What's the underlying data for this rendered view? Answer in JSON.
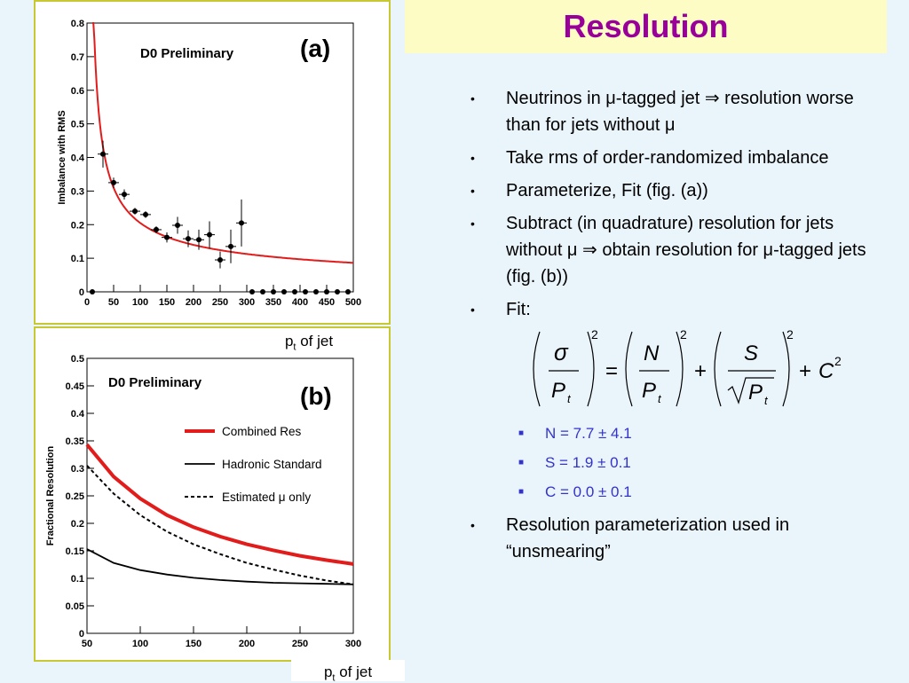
{
  "slide": {
    "title": "Resolution",
    "caption_a_base": "p",
    "caption_a_sub": "t",
    "caption_a_rest": " of jet",
    "caption_b_base": "p",
    "caption_b_sub": "t",
    "caption_b_rest": " of jet"
  },
  "bullets": {
    "b1": "Neutrinos in μ-tagged jet ⇒ resolution worse than for jets without μ",
    "b2": "Take rms of order-randomized imbalance",
    "b3": "Parameterize, Fit  (fig. (a))",
    "b4": "Subtract  (in quadrature) resolution for jets without μ  ⇒ obtain resolution for μ-tagged jets (fig. (b))",
    "b5": "Fit:",
    "fit_params": [
      "N = 7.7 ± 4.1",
      "S = 1.9 ± 0.1",
      "C = 0.0 ± 0.1"
    ],
    "b6": "Resolution parameterization used in “unsmearing”",
    "bullet_glyph": "•",
    "sub_glyph": "■"
  },
  "formula": {
    "sigma": "σ",
    "P": "P",
    "t": "t",
    "N": "N",
    "S": "S",
    "C": "C",
    "eq": "=",
    "plus": "+",
    "sq": "2"
  },
  "chart_data": [
    {
      "type": "scatter",
      "panel": "(a)",
      "title": "D0 Preliminary",
      "xlabel": "",
      "ylabel": "Imbalance with RMS",
      "xlim": [
        0,
        500
      ],
      "ylim": [
        0,
        0.8
      ],
      "x_ticks": [
        0,
        50,
        100,
        150,
        200,
        250,
        300,
        350,
        400,
        450,
        500
      ],
      "y_ticks": [
        0,
        0.1,
        0.2,
        0.3,
        0.4,
        0.5,
        0.6,
        0.7,
        0.8
      ],
      "y_tick_labels": [
        "0",
        "0.1",
        "0.2",
        "0.3",
        "0.4",
        "0.5",
        "0.6",
        "0.7",
        "0.8"
      ],
      "points": [
        {
          "x": 10,
          "y": 0,
          "err": 0
        },
        {
          "x": 30,
          "y": 0.41,
          "err": 0.04
        },
        {
          "x": 50,
          "y": 0.325,
          "err": 0.015
        },
        {
          "x": 70,
          "y": 0.29,
          "err": 0.015
        },
        {
          "x": 90,
          "y": 0.24,
          "err": 0.01
        },
        {
          "x": 110,
          "y": 0.23,
          "err": 0.01
        },
        {
          "x": 130,
          "y": 0.185,
          "err": 0.01
        },
        {
          "x": 150,
          "y": 0.162,
          "err": 0.015
        },
        {
          "x": 170,
          "y": 0.198,
          "err": 0.025
        },
        {
          "x": 190,
          "y": 0.158,
          "err": 0.025
        },
        {
          "x": 210,
          "y": 0.155,
          "err": 0.03
        },
        {
          "x": 230,
          "y": 0.17,
          "err": 0.04
        },
        {
          "x": 250,
          "y": 0.095,
          "err": 0.025
        },
        {
          "x": 270,
          "y": 0.135,
          "err": 0.05
        },
        {
          "x": 290,
          "y": 0.205,
          "err": 0.07
        },
        {
          "x": 310,
          "y": 0,
          "err": 0
        },
        {
          "x": 330,
          "y": 0,
          "err": 0
        },
        {
          "x": 350,
          "y": 0,
          "err": 0
        },
        {
          "x": 370,
          "y": 0,
          "err": 0
        },
        {
          "x": 390,
          "y": 0,
          "err": 0
        },
        {
          "x": 410,
          "y": 0,
          "err": 0
        },
        {
          "x": 430,
          "y": 0,
          "err": 0
        },
        {
          "x": 450,
          "y": 0,
          "err": 0
        },
        {
          "x": 470,
          "y": 0,
          "err": 0
        },
        {
          "x": 490,
          "y": 0,
          "err": 0
        }
      ],
      "fit": {
        "color": "#e21b1b",
        "N": 7.7,
        "S": 1.9,
        "C": 0.0,
        "x_from": 10,
        "x_to": 500
      }
    },
    {
      "type": "line",
      "panel": "(b)",
      "title": "D0 Preliminary",
      "xlabel": "",
      "ylabel": "Fractional Resolution",
      "xlim": [
        50,
        300
      ],
      "ylim": [
        0,
        0.5
      ],
      "x_ticks": [
        50,
        100,
        150,
        200,
        250,
        300
      ],
      "y_ticks": [
        0,
        0.05,
        0.1,
        0.15,
        0.2,
        0.25,
        0.3,
        0.35,
        0.4,
        0.45,
        0.5
      ],
      "y_tick_labels": [
        "0",
        "0.05",
        "0.1",
        "0.15",
        "0.2",
        "0.25",
        "0.3",
        "0.35",
        "0.4",
        "0.45",
        "0.5"
      ],
      "series": [
        {
          "name": "Combined Res",
          "color": "#e21b1b",
          "style": "thick",
          "x": [
            50,
            75,
            100,
            125,
            150,
            175,
            200,
            225,
            250,
            275,
            300
          ],
          "values": [
            0.343,
            0.285,
            0.245,
            0.215,
            0.193,
            0.176,
            0.162,
            0.151,
            0.141,
            0.133,
            0.126
          ]
        },
        {
          "name": "Hadronic Standard",
          "color": "#000000",
          "style": "solid",
          "x": [
            50,
            75,
            100,
            125,
            150,
            175,
            200,
            225,
            250,
            275,
            300
          ],
          "values": [
            0.153,
            0.128,
            0.115,
            0.107,
            0.101,
            0.097,
            0.094,
            0.092,
            0.091,
            0.09,
            0.089
          ]
        },
        {
          "name": "Estimated μ only",
          "color": "#000000",
          "style": "dashed",
          "x": [
            50,
            75,
            100,
            125,
            150,
            175,
            200,
            225,
            250,
            275,
            300
          ],
          "values": [
            0.305,
            0.254,
            0.215,
            0.185,
            0.162,
            0.144,
            0.128,
            0.116,
            0.105,
            0.096,
            0.089
          ]
        }
      ]
    }
  ]
}
